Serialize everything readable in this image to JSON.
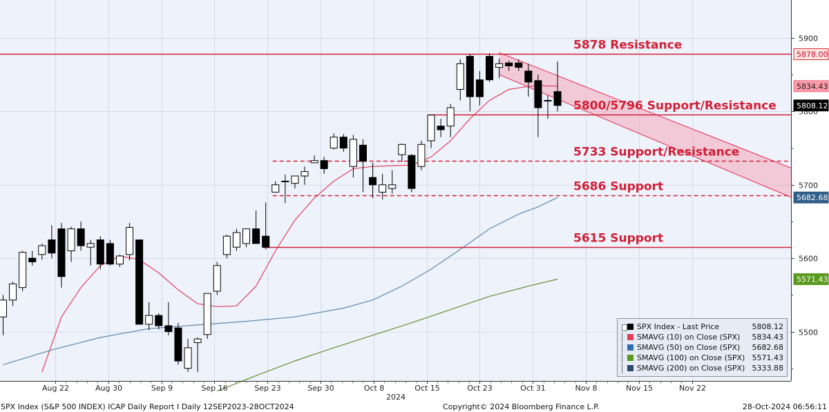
{
  "footer": {
    "left": "SPX Index (S&P 500 INDEX) ICAP Daily Report I  Daily 12SEP2023-28OCT2024",
    "center": "Copyright© 2024 Bloomberg Finance L.P.",
    "right": "28-Oct-2024 06:56:11"
  },
  "chart_data": {
    "type": "candlestick",
    "y_ticks": [
      5500,
      5600,
      5700,
      5800,
      5900
    ],
    "ylim": [
      5435,
      5945
    ],
    "x_labels": [
      "Aug 22",
      "Aug 30",
      "Sep 9",
      "Sep 16",
      "Sep 23",
      "Sep 30",
      "Oct 8",
      "Oct 15",
      "Oct 23",
      "Oct 31",
      "Nov 8",
      "Nov 15",
      "Nov 22"
    ],
    "x_year": "2024",
    "grid": true,
    "candles": [
      {
        "o": 5520,
        "h": 5550,
        "l": 5495,
        "c": 5543
      },
      {
        "o": 5543,
        "h": 5568,
        "l": 5535,
        "c": 5565
      },
      {
        "o": 5560,
        "h": 5610,
        "l": 5555,
        "c": 5608
      },
      {
        "o": 5600,
        "h": 5610,
        "l": 5590,
        "c": 5595
      },
      {
        "o": 5605,
        "h": 5620,
        "l": 5598,
        "c": 5617
      },
      {
        "o": 5625,
        "h": 5645,
        "l": 5600,
        "c": 5607
      },
      {
        "o": 5640,
        "h": 5648,
        "l": 5560,
        "c": 5575
      },
      {
        "o": 5610,
        "h": 5643,
        "l": 5595,
        "c": 5640
      },
      {
        "o": 5640,
        "h": 5650,
        "l": 5610,
        "c": 5617
      },
      {
        "o": 5615,
        "h": 5625,
        "l": 5590,
        "c": 5620
      },
      {
        "o": 5625,
        "h": 5630,
        "l": 5585,
        "c": 5592
      },
      {
        "o": 5620,
        "h": 5625,
        "l": 5590,
        "c": 5592
      },
      {
        "o": 5592,
        "h": 5605,
        "l": 5588,
        "c": 5603
      },
      {
        "o": 5605,
        "h": 5648,
        "l": 5597,
        "c": 5642
      },
      {
        "o": 5625,
        "h": 5625,
        "l": 5510,
        "c": 5510
      },
      {
        "o": 5510,
        "h": 5540,
        "l": 5502,
        "c": 5522
      },
      {
        "o": 5522,
        "h": 5525,
        "l": 5503,
        "c": 5508
      },
      {
        "o": 5508,
        "h": 5540,
        "l": 5495,
        "c": 5500
      },
      {
        "o": 5505,
        "h": 5512,
        "l": 5455,
        "c": 5460
      },
      {
        "o": 5450,
        "h": 5490,
        "l": 5445,
        "c": 5478
      },
      {
        "o": 5485,
        "h": 5492,
        "l": 5445,
        "c": 5490
      },
      {
        "o": 5496,
        "h": 5550,
        "l": 5490,
        "c": 5552
      },
      {
        "o": 5555,
        "h": 5595,
        "l": 5550,
        "c": 5590
      },
      {
        "o": 5605,
        "h": 5632,
        "l": 5600,
        "c": 5630
      },
      {
        "o": 5615,
        "h": 5640,
        "l": 5610,
        "c": 5635
      },
      {
        "o": 5620,
        "h": 5640,
        "l": 5615,
        "c": 5640
      },
      {
        "o": 5640,
        "h": 5665,
        "l": 5620,
        "c": 5620
      },
      {
        "o": 5630,
        "h": 5676,
        "l": 5612,
        "c": 5615
      },
      {
        "o": 5690,
        "h": 5705,
        "l": 5690,
        "c": 5700
      },
      {
        "o": 5705,
        "h": 5714,
        "l": 5675,
        "c": 5705
      },
      {
        "o": 5702,
        "h": 5710,
        "l": 5695,
        "c": 5712
      },
      {
        "o": 5712,
        "h": 5725,
        "l": 5700,
        "c": 5718
      },
      {
        "o": 5730,
        "h": 5740,
        "l": 5730,
        "c": 5733
      },
      {
        "o": 5733,
        "h": 5738,
        "l": 5715,
        "c": 5722
      },
      {
        "o": 5750,
        "h": 5770,
        "l": 5748,
        "c": 5765
      },
      {
        "o": 5765,
        "h": 5769,
        "l": 5745,
        "c": 5750
      },
      {
        "o": 5725,
        "h": 5768,
        "l": 5710,
        "c": 5762
      },
      {
        "o": 5754,
        "h": 5762,
        "l": 5690,
        "c": 5732
      },
      {
        "o": 5710,
        "h": 5730,
        "l": 5682,
        "c": 5700
      },
      {
        "o": 5690,
        "h": 5715,
        "l": 5680,
        "c": 5700
      },
      {
        "o": 5695,
        "h": 5720,
        "l": 5688,
        "c": 5700
      },
      {
        "o": 5741,
        "h": 5756,
        "l": 5731,
        "c": 5755
      },
      {
        "o": 5740,
        "h": 5742,
        "l": 5690,
        "c": 5695
      },
      {
        "o": 5725,
        "h": 5760,
        "l": 5720,
        "c": 5755
      },
      {
        "o": 5760,
        "h": 5795,
        "l": 5750,
        "c": 5795
      },
      {
        "o": 5780,
        "h": 5790,
        "l": 5765,
        "c": 5775
      },
      {
        "o": 5780,
        "h": 5810,
        "l": 5765,
        "c": 5805
      },
      {
        "o": 5830,
        "h": 5871,
        "l": 5815,
        "c": 5865
      },
      {
        "o": 5875,
        "h": 5878,
        "l": 5800,
        "c": 5820
      },
      {
        "o": 5843,
        "h": 5855,
        "l": 5808,
        "c": 5820
      },
      {
        "o": 5875,
        "h": 5879,
        "l": 5840,
        "c": 5843
      },
      {
        "o": 5860,
        "h": 5872,
        "l": 5845,
        "c": 5865
      },
      {
        "o": 5866,
        "h": 5869,
        "l": 5855,
        "c": 5862
      },
      {
        "o": 5866,
        "h": 5871,
        "l": 5855,
        "c": 5860
      },
      {
        "o": 5855,
        "h": 5865,
        "l": 5820,
        "c": 5840
      },
      {
        "o": 5842,
        "h": 5850,
        "l": 5765,
        "c": 5805
      },
      {
        "o": 5815,
        "h": 5822,
        "l": 5790,
        "c": 5815
      },
      {
        "o": 5827,
        "h": 5868,
        "l": 5800,
        "c": 5808.12
      }
    ],
    "horizontal_levels": [
      {
        "label": "5878 Resistance",
        "value": 5878,
        "style": "solid",
        "x_start_candle": 0
      },
      {
        "label": "5800/5796 Support/Resistance",
        "value": 5796,
        "style": "solid",
        "x_start_candle": 44
      },
      {
        "label": "5733 Support/Resistance",
        "value": 5733,
        "style": "dashed",
        "x_start_candle": 28
      },
      {
        "label": "5686 Support",
        "value": 5686,
        "style": "dashed",
        "x_start_candle": 28
      },
      {
        "label": "5615 Support",
        "value": 5615,
        "style": "solid",
        "x_start_candle": 27
      }
    ],
    "channel": {
      "upper": {
        "start": {
          "candle": 51,
          "value": 5880
        },
        "end_value": 5723
      },
      "lower": {
        "start": {
          "candle": 51,
          "value": 5850
        },
        "end_value": 5683
      }
    },
    "price_tags": [
      {
        "value": 5878.0,
        "text": "5878.00",
        "color": "#ffe2e2",
        "text_color": "#c0102a",
        "border": "#e23030"
      },
      {
        "value": 5834.43,
        "text": "5834.43",
        "color": "#ff9aa8",
        "text_color": "#222222",
        "border": "#e86b7f"
      },
      {
        "value": 5808.12,
        "text": "5808.12",
        "color": "#000000",
        "text_color": "#ffffff",
        "border": "#000000"
      },
      {
        "value": 5682.68,
        "text": "5682.68",
        "color": "#2f5f88",
        "text_color": "#ffffff",
        "border": "#2f5f88"
      },
      {
        "value": 5571.43,
        "text": "5571.43",
        "color": "#5a9a1e",
        "text_color": "#ffffff",
        "border": "#5a9a1e"
      }
    ],
    "series": [
      {
        "name": "SMAVG (10)  on Close (SPX)",
        "color": "#e23e58",
        "values": [
          {
            "i": 4,
            "v": 5445
          },
          {
            "i": 6,
            "v": 5520
          },
          {
            "i": 8,
            "v": 5560
          },
          {
            "i": 10,
            "v": 5590
          },
          {
            "i": 12,
            "v": 5603
          },
          {
            "i": 14,
            "v": 5598
          },
          {
            "i": 16,
            "v": 5580
          },
          {
            "i": 18,
            "v": 5557
          },
          {
            "i": 20,
            "v": 5538
          },
          {
            "i": 22,
            "v": 5534
          },
          {
            "i": 24,
            "v": 5535
          },
          {
            "i": 26,
            "v": 5562
          },
          {
            "i": 28,
            "v": 5610
          },
          {
            "i": 30,
            "v": 5652
          },
          {
            "i": 32,
            "v": 5682
          },
          {
            "i": 34,
            "v": 5705
          },
          {
            "i": 36,
            "v": 5722
          },
          {
            "i": 38,
            "v": 5725
          },
          {
            "i": 40,
            "v": 5726
          },
          {
            "i": 42,
            "v": 5727
          },
          {
            "i": 44,
            "v": 5738
          },
          {
            "i": 46,
            "v": 5760
          },
          {
            "i": 48,
            "v": 5790
          },
          {
            "i": 50,
            "v": 5815
          },
          {
            "i": 52,
            "v": 5830
          },
          {
            "i": 54,
            "v": 5834
          },
          {
            "i": 55,
            "v": 5835
          },
          {
            "i": 57,
            "v": 5834.43
          }
        ]
      },
      {
        "name": "SMAVG (50)  on Close (SPX)",
        "color": "#5e88aa",
        "values": [
          {
            "i": 0,
            "v": 5455
          },
          {
            "i": 5,
            "v": 5475
          },
          {
            "i": 10,
            "v": 5492
          },
          {
            "i": 15,
            "v": 5504
          },
          {
            "i": 20,
            "v": 5509
          },
          {
            "i": 25,
            "v": 5514
          },
          {
            "i": 30,
            "v": 5520
          },
          {
            "i": 35,
            "v": 5532
          },
          {
            "i": 38,
            "v": 5543
          },
          {
            "i": 41,
            "v": 5562
          },
          {
            "i": 44,
            "v": 5585
          },
          {
            "i": 47,
            "v": 5612
          },
          {
            "i": 50,
            "v": 5640
          },
          {
            "i": 53,
            "v": 5660
          },
          {
            "i": 55,
            "v": 5670
          },
          {
            "i": 57,
            "v": 5682.68
          }
        ]
      },
      {
        "name": "SMAVG (100)  on Close (SPX)",
        "color": "#5f8f33",
        "values": [
          {
            "i": 22,
            "v": 5419
          },
          {
            "i": 26,
            "v": 5440
          },
          {
            "i": 30,
            "v": 5460
          },
          {
            "i": 34,
            "v": 5478
          },
          {
            "i": 38,
            "v": 5495
          },
          {
            "i": 42,
            "v": 5512
          },
          {
            "i": 46,
            "v": 5530
          },
          {
            "i": 50,
            "v": 5548
          },
          {
            "i": 54,
            "v": 5562
          },
          {
            "i": 57,
            "v": 5571.43
          }
        ]
      }
    ],
    "legend": {
      "placement": "bottom-right",
      "entries": [
        {
          "label": "SPX Index - Last Price",
          "value": "5808.12",
          "color": "#000000"
        },
        {
          "label": "SMAVG (10)  on Close (SPX)",
          "value": "5834.43",
          "color": "#e23e58"
        },
        {
          "label": "SMAVG (50)  on Close (SPX)",
          "value": "5682.68",
          "color": "#2f6fb0"
        },
        {
          "label": "SMAVG (100)  on Close (SPX)",
          "value": "5571.43",
          "color": "#5a9a1e"
        },
        {
          "label": "SMAVG (200)  on Close (SPX)",
          "value": "5333.88",
          "color": "#2a4a6e"
        }
      ]
    }
  }
}
